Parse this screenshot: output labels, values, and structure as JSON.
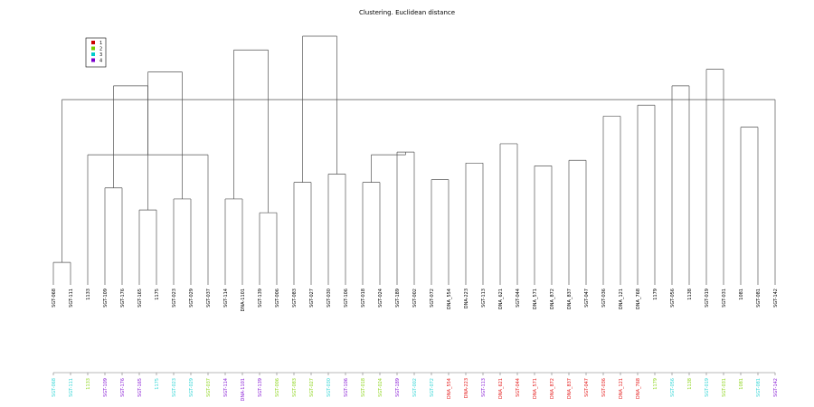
{
  "title": "Clustering. Euclidean distance",
  "legend": [
    {
      "label": "1",
      "color": "#cc0000"
    },
    {
      "label": "2",
      "color": "#77cc00"
    },
    {
      "label": "3",
      "color": "#00cccc"
    },
    {
      "label": "4",
      "color": "#7a00cc"
    }
  ],
  "colors": {
    "1": "#e51c1c",
    "2": "#8fd61f",
    "3": "#33d6d6",
    "4": "#8a1fd6",
    "line": "#555555"
  },
  "leaves": [
    {
      "label": "SGT-068",
      "group": 3
    },
    {
      "label": "SGT-111",
      "group": 3
    },
    {
      "label": "1133",
      "group": 2
    },
    {
      "label": "SGT-109",
      "group": 4
    },
    {
      "label": "SGT-176",
      "group": 4
    },
    {
      "label": "SGT-165",
      "group": 4
    },
    {
      "label": "1175",
      "group": 3
    },
    {
      "label": "SGT-023",
      "group": 3
    },
    {
      "label": "SGT-029",
      "group": 3
    },
    {
      "label": "SGT-037",
      "group": 2
    },
    {
      "label": "SGT-114",
      "group": 4
    },
    {
      "label": "DNA-1101",
      "group": 4
    },
    {
      "label": "SGT-139",
      "group": 4
    },
    {
      "label": "SGT-006",
      "group": 2
    },
    {
      "label": "SGT-083",
      "group": 2
    },
    {
      "label": "SGT-027",
      "group": 2
    },
    {
      "label": "SGT-030",
      "group": 3
    },
    {
      "label": "SGT-106",
      "group": 4
    },
    {
      "label": "SGT-018",
      "group": 2
    },
    {
      "label": "SGT-024",
      "group": 2
    },
    {
      "label": "SGT-189",
      "group": 4
    },
    {
      "label": "SGT-002",
      "group": 3
    },
    {
      "label": "SGT-072",
      "group": 3
    },
    {
      "label": "DNA_554",
      "group": 1
    },
    {
      "label": "DNA-223",
      "group": 1
    },
    {
      "label": "SGT-113",
      "group": 4
    },
    {
      "label": "DNA_621",
      "group": 1
    },
    {
      "label": "SGT-044",
      "group": 1
    },
    {
      "label": "DNA_571",
      "group": 1
    },
    {
      "label": "DNA_872",
      "group": 1
    },
    {
      "label": "DNA_837",
      "group": 1
    },
    {
      "label": "SGT-047",
      "group": 1
    },
    {
      "label": "SGT-036",
      "group": 1
    },
    {
      "label": "DNA_121",
      "group": 1
    },
    {
      "label": "DNA_768",
      "group": 1
    },
    {
      "label": "1179",
      "group": 2
    },
    {
      "label": "SGT-056",
      "group": 3
    },
    {
      "label": "1138",
      "group": 2
    },
    {
      "label": "SGT-019",
      "group": 3
    },
    {
      "label": "SGT-031",
      "group": 2
    },
    {
      "label": "1081",
      "group": 2
    },
    {
      "label": "SGT-081",
      "group": 3
    },
    {
      "label": "SGT-142",
      "group": 4
    }
  ],
  "merges": [
    [
      0,
      1,
      0.18
    ],
    [
      3,
      4,
      0.45
    ],
    [
      5,
      6,
      0.37
    ],
    [
      7,
      8,
      0.41
    ],
    [
      2,
      9,
      0.57
    ],
    [
      10,
      11,
      0.41
    ],
    [
      12,
      13,
      0.36
    ],
    [
      14,
      15,
      0.47
    ],
    [
      16,
      17,
      0.5
    ],
    [
      18,
      19,
      0.47
    ],
    [
      20,
      21,
      0.58
    ],
    [
      22,
      23,
      0.48
    ],
    [
      24,
      25,
      0.54
    ],
    [
      26,
      27,
      0.61
    ],
    [
      28,
      29,
      0.53
    ],
    [
      30,
      31,
      0.55
    ],
    [
      32,
      33,
      0.71
    ],
    [
      34,
      35,
      0.75
    ],
    [
      36,
      37,
      0.82
    ],
    [
      38,
      39,
      0.88
    ],
    [
      40,
      41,
      0.67
    ],
    [
      42,
      43,
      0.77
    ],
    [
      44,
      45,
      0.82
    ],
    [
      46,
      47,
      0.87
    ],
    [
      48,
      49,
      0.95
    ],
    [
      50,
      51,
      1.0
    ],
    [
      52,
      53,
      0.57
    ]
  ]
}
